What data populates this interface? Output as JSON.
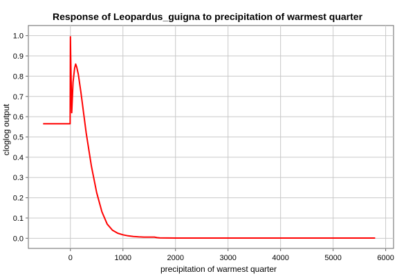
{
  "chart_data": {
    "type": "line",
    "title": "Response of Leopardus_guigna to precipitation of warmest quarter",
    "xlabel": "precipitation of warmest quarter",
    "ylabel": "cloglog output",
    "xlim": [
      -800,
      6150
    ],
    "ylim": [
      -0.05,
      1.05
    ],
    "xticks": [
      0,
      1000,
      2000,
      3000,
      4000,
      5000,
      6000
    ],
    "xtick_labels": [
      "0",
      "1000",
      "2000",
      "3000",
      "4000",
      "5000",
      "6000"
    ],
    "yticks": [
      0.0,
      0.1,
      0.2,
      0.3,
      0.4,
      0.5,
      0.6,
      0.7,
      0.8,
      0.9,
      1.0
    ],
    "ytick_labels": [
      "0.0",
      "0.1",
      "0.2",
      "0.3",
      "0.4",
      "0.5",
      "0.6",
      "0.7",
      "0.8",
      "0.9",
      "1.0"
    ],
    "grid": true,
    "line_color": "#ff0000",
    "series": [
      {
        "x": [
          -520,
          -5,
          -5,
          0,
          5,
          25,
          50,
          80,
          100,
          120,
          150,
          200,
          250,
          300,
          400,
          500,
          600,
          700,
          800,
          900,
          1000,
          1100,
          1200,
          1300,
          1400,
          1500,
          1600,
          1650,
          1700,
          2000,
          3000,
          4000,
          5000,
          5800
        ],
        "y": [
          0.565,
          0.565,
          0.57,
          0.995,
          0.9,
          0.62,
          0.77,
          0.84,
          0.86,
          0.845,
          0.81,
          0.72,
          0.62,
          0.52,
          0.355,
          0.225,
          0.13,
          0.07,
          0.04,
          0.025,
          0.017,
          0.012,
          0.009,
          0.007,
          0.006,
          0.006,
          0.006,
          0.003,
          0.002,
          0.001,
          0.001,
          0.001,
          0.001,
          0.001
        ]
      }
    ]
  }
}
